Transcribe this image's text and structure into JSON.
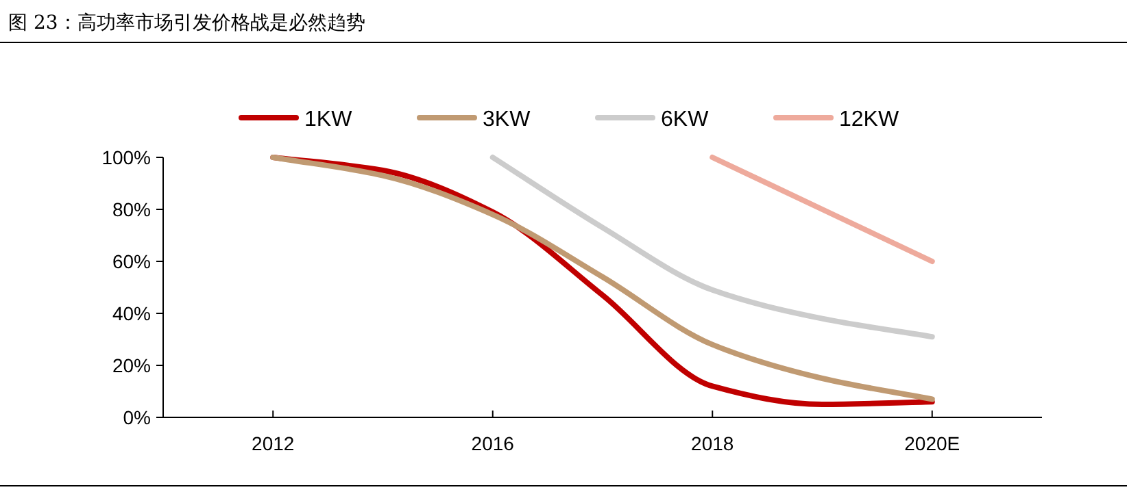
{
  "chart_data": {
    "type": "line",
    "title": "图 23：高功率市场引发价格战是必然趋势",
    "categories": [
      "2012",
      null,
      "2016",
      null,
      "2018",
      null,
      "2020E"
    ],
    "series": [
      {
        "name": "1KW",
        "color": "#c00000",
        "values": [
          100,
          95,
          79,
          47,
          12,
          5,
          6
        ]
      },
      {
        "name": "3KW",
        "color": "#c09a72",
        "values": [
          100,
          93,
          78,
          54,
          28,
          15,
          7
        ]
      },
      {
        "name": "6KW",
        "color": "#cccccc",
        "values": [
          null,
          null,
          100,
          73,
          49,
          38,
          31
        ]
      },
      {
        "name": "12KW",
        "color": "#eeaa9c",
        "values": [
          null,
          null,
          null,
          null,
          100,
          80,
          60
        ]
      }
    ],
    "ylim": [
      0,
      100
    ],
    "yticks": [
      {
        "value": 0,
        "label": "0%"
      },
      {
        "value": 20,
        "label": "20%"
      },
      {
        "value": 40,
        "label": "40%"
      },
      {
        "value": 60,
        "label": "60%"
      },
      {
        "value": 80,
        "label": "80%"
      },
      {
        "value": 100,
        "label": "100%"
      }
    ],
    "grid": false,
    "legend": "top",
    "marker": "none",
    "line_style": "solid"
  }
}
